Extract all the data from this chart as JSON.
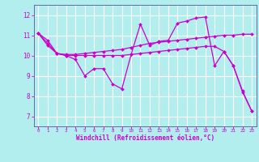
{
  "background_color": "#b3eeee",
  "grid_color": "#ffffff",
  "line_color": "#cc00cc",
  "marker": "D",
  "markersize": 2.0,
  "linewidth": 0.9,
  "xlabel": "Windchill (Refroidissement éolien,°C)",
  "xlabel_color": "#cc00cc",
  "tick_color": "#cc00cc",
  "axis_color": "#6666aa",
  "ylim": [
    6.5,
    12.5
  ],
  "xlim": [
    -0.5,
    23.5
  ],
  "yticks": [
    7,
    8,
    9,
    10,
    11,
    12
  ],
  "xticks": [
    0,
    1,
    2,
    3,
    4,
    5,
    6,
    7,
    8,
    9,
    10,
    11,
    12,
    13,
    14,
    15,
    16,
    17,
    18,
    19,
    20,
    21,
    22,
    23
  ],
  "series": [
    [
      11.1,
      10.75,
      10.1,
      10.0,
      9.8,
      9.0,
      9.35,
      9.35,
      8.6,
      8.35,
      10.05,
      11.55,
      10.5,
      10.7,
      10.75,
      11.6,
      11.7,
      11.85,
      11.9,
      9.5,
      10.2,
      9.5,
      8.2,
      7.25
    ],
    [
      11.1,
      10.6,
      10.1,
      10.05,
      10.05,
      10.1,
      10.15,
      10.2,
      10.25,
      10.3,
      10.4,
      10.5,
      10.6,
      10.65,
      10.7,
      10.75,
      10.8,
      10.85,
      10.9,
      10.95,
      11.0,
      11.0,
      11.05,
      11.05
    ],
    [
      11.1,
      10.5,
      10.1,
      10.0,
      10.0,
      10.0,
      10.0,
      10.0,
      10.0,
      10.0,
      10.05,
      10.1,
      10.15,
      10.2,
      10.25,
      10.3,
      10.35,
      10.4,
      10.45,
      10.45,
      10.2,
      9.5,
      8.25,
      7.25
    ]
  ]
}
